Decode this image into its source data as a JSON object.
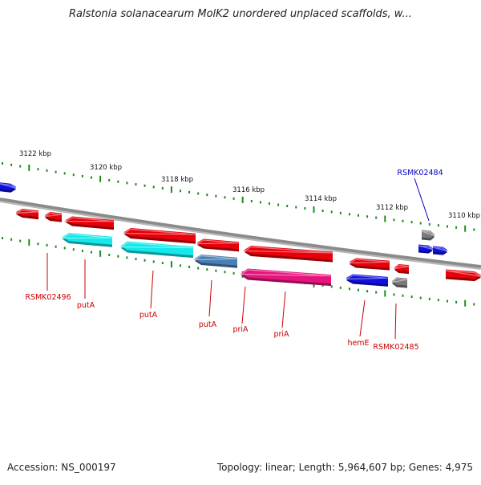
{
  "title": "Ralstonia solanacearum MolK2 unordered unplaced scaffolds, w...",
  "footer": {
    "accession": "Accession: NS_000197",
    "summary": "Topology: linear; Length: 5,964,607 bp; Genes: 4,975"
  },
  "colors": {
    "backbone": "#8a8a8a",
    "tick": "#1d8a1d",
    "red": "#e8000a",
    "cyan": "#14e8ea",
    "steelblue": "#4a7fb5",
    "magenta": "#e8147e",
    "blue": "#1010e0",
    "gray": "#7a7a7a",
    "label_red": "#cc0000",
    "label_blue": "#0000cc"
  },
  "scale": {
    "labels": [
      "3122 kbp",
      "3120 kbp",
      "3118 kbp",
      "3116 kbp",
      "3114 kbp",
      "3112 kbp",
      "3110 kbp"
    ]
  },
  "genes": [
    {
      "name": "",
      "color": "red",
      "strand": "reverse"
    },
    {
      "name": "",
      "color": "red",
      "strand": "reverse"
    },
    {
      "name": "",
      "color": "red",
      "strand": "reverse"
    },
    {
      "name": "",
      "color": "red",
      "strand": "reverse"
    },
    {
      "name": "",
      "color": "red",
      "strand": "reverse"
    },
    {
      "name": "",
      "color": "red",
      "strand": "reverse"
    },
    {
      "name": "",
      "color": "red",
      "strand": "reverse"
    },
    {
      "name": "",
      "color": "red",
      "strand": "reverse"
    },
    {
      "name": "",
      "color": "red",
      "strand": "forward"
    },
    {
      "name": "",
      "color": "blue",
      "strand": "forward"
    },
    {
      "name": "",
      "color": "blue",
      "strand": "forward"
    },
    {
      "name": "",
      "color": "blue",
      "strand": "forward"
    },
    {
      "name": "",
      "color": "cyan",
      "strand": "reverse"
    },
    {
      "name": "",
      "color": "cyan",
      "strand": "reverse"
    },
    {
      "name": "",
      "color": "steelblue",
      "strand": "reverse"
    },
    {
      "name": "",
      "color": "magenta",
      "strand": "reverse"
    },
    {
      "name": "",
      "color": "blue",
      "strand": "reverse"
    },
    {
      "name": "",
      "color": "gray",
      "strand": "reverse"
    },
    {
      "name": "",
      "color": "gray",
      "strand": "forward"
    }
  ],
  "gene_labels": [
    {
      "text": "RSMK02496",
      "color": "label_red"
    },
    {
      "text": "putA",
      "color": "label_red"
    },
    {
      "text": "putA",
      "color": "label_red"
    },
    {
      "text": "putA",
      "color": "label_red"
    },
    {
      "text": "priA",
      "color": "label_red"
    },
    {
      "text": "priA",
      "color": "label_red"
    },
    {
      "text": "hemE",
      "color": "label_red"
    },
    {
      "text": "RSMK02485",
      "color": "label_red"
    },
    {
      "text": "RSMK02484",
      "color": "label_blue"
    }
  ]
}
